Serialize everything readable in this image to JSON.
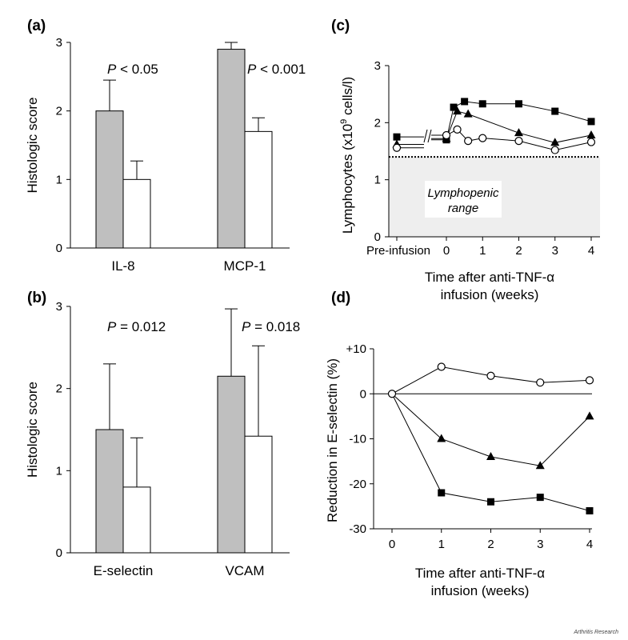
{
  "credit": "Arthritis Research",
  "colors": {
    "filled_bar": "#bfbfbf",
    "open_bar": "#ffffff",
    "ink": "#000000",
    "range_band": "#eeeeee"
  },
  "chart_data": [
    {
      "panel": "(a)",
      "type": "bar",
      "ylabel": "Histologic score",
      "ylim": [
        0,
        3
      ],
      "yticks": [
        "0",
        "1",
        "2",
        "3"
      ],
      "categories": [
        "IL-8",
        "MCP-1"
      ],
      "series": [
        {
          "name": "filled",
          "values": [
            2.0,
            2.9
          ],
          "errors": [
            0.45,
            0.1
          ]
        },
        {
          "name": "open",
          "values": [
            1.0,
            1.7
          ],
          "errors": [
            0.27,
            0.2
          ]
        }
      ],
      "pvalue_labels": [
        {
          "prefix": "P",
          "text": " < 0.05"
        },
        {
          "prefix": "P",
          "text": " < 0.001"
        }
      ]
    },
    {
      "panel": "(b)",
      "type": "bar",
      "ylabel": "Histologic score",
      "ylim": [
        0,
        3
      ],
      "yticks": [
        "0",
        "1",
        "2",
        "3"
      ],
      "categories": [
        "E-selectin",
        "VCAM"
      ],
      "series": [
        {
          "name": "filled",
          "values": [
            1.5,
            2.15
          ],
          "errors": [
            0.8,
            0.82
          ]
        },
        {
          "name": "open",
          "values": [
            0.8,
            1.42
          ],
          "errors": [
            0.6,
            1.1
          ]
        }
      ],
      "pvalue_labels": [
        {
          "prefix": "P",
          "text": " = 0.012"
        },
        {
          "prefix": "P",
          "text": " = 0.018"
        }
      ]
    },
    {
      "panel": "(c)",
      "type": "line",
      "ylabel_prefix": "Lymphocytes (x10",
      "ylabel_sup": "9",
      "ylabel_suffix": " cells/l)",
      "xlabel_lines": [
        "Time after anti-TNF-α",
        "infusion (weeks)"
      ],
      "ylim": [
        0,
        3
      ],
      "yticks": [
        "0",
        "1",
        "2",
        "3"
      ],
      "xticks": [
        "Pre-infusion",
        "0",
        "1",
        "2",
        "3",
        "4"
      ],
      "threshold": 1.4,
      "band_label_lines": [
        "Lymphopenic",
        "range"
      ],
      "series": [
        {
          "name": "squares",
          "marker": "square",
          "points": [
            [
              -1.6,
              1.75
            ],
            [
              0,
              1.7
            ],
            [
              0.2,
              2.27
            ],
            [
              0.5,
              2.37
            ],
            [
              1,
              2.33
            ],
            [
              2,
              2.33
            ],
            [
              3,
              2.2
            ],
            [
              4,
              2.02
            ]
          ]
        },
        {
          "name": "triangles",
          "marker": "triangle",
          "points": [
            [
              -1.6,
              1.62
            ],
            [
              0,
              1.72
            ],
            [
              0.3,
              2.2
            ],
            [
              0.6,
              2.15
            ],
            [
              2,
              1.82
            ],
            [
              3,
              1.65
            ],
            [
              4,
              1.78
            ]
          ]
        },
        {
          "name": "circles",
          "marker": "circle",
          "points": [
            [
              -1.6,
              1.56
            ],
            [
              0,
              1.78
            ],
            [
              0.3,
              1.88
            ],
            [
              0.6,
              1.68
            ],
            [
              1,
              1.73
            ],
            [
              2,
              1.68
            ],
            [
              3,
              1.52
            ],
            [
              4,
              1.66
            ]
          ]
        }
      ]
    },
    {
      "panel": "(d)",
      "type": "line",
      "ylabel": "Reduction in E-selectin (%)",
      "xlabel_lines": [
        "Time after anti-TNF-α",
        "infusion (weeks)"
      ],
      "ylim": [
        -30,
        10
      ],
      "yticks": [
        "+10",
        "0",
        "-10",
        "-20",
        "-30"
      ],
      "xticks": [
        "0",
        "1",
        "2",
        "3",
        "4"
      ],
      "series": [
        {
          "name": "circles",
          "marker": "circle",
          "x": [
            0,
            1,
            2,
            3,
            4
          ],
          "values": [
            0,
            6,
            4,
            2.5,
            3
          ]
        },
        {
          "name": "triangles",
          "marker": "triangle",
          "x": [
            0,
            1,
            2,
            3,
            4
          ],
          "values": [
            0,
            -10,
            -14,
            -16,
            -5
          ]
        },
        {
          "name": "squares",
          "marker": "square",
          "x": [
            0,
            1,
            2,
            3,
            4
          ],
          "values": [
            0,
            -22,
            -24,
            -23,
            -26
          ]
        }
      ]
    }
  ]
}
